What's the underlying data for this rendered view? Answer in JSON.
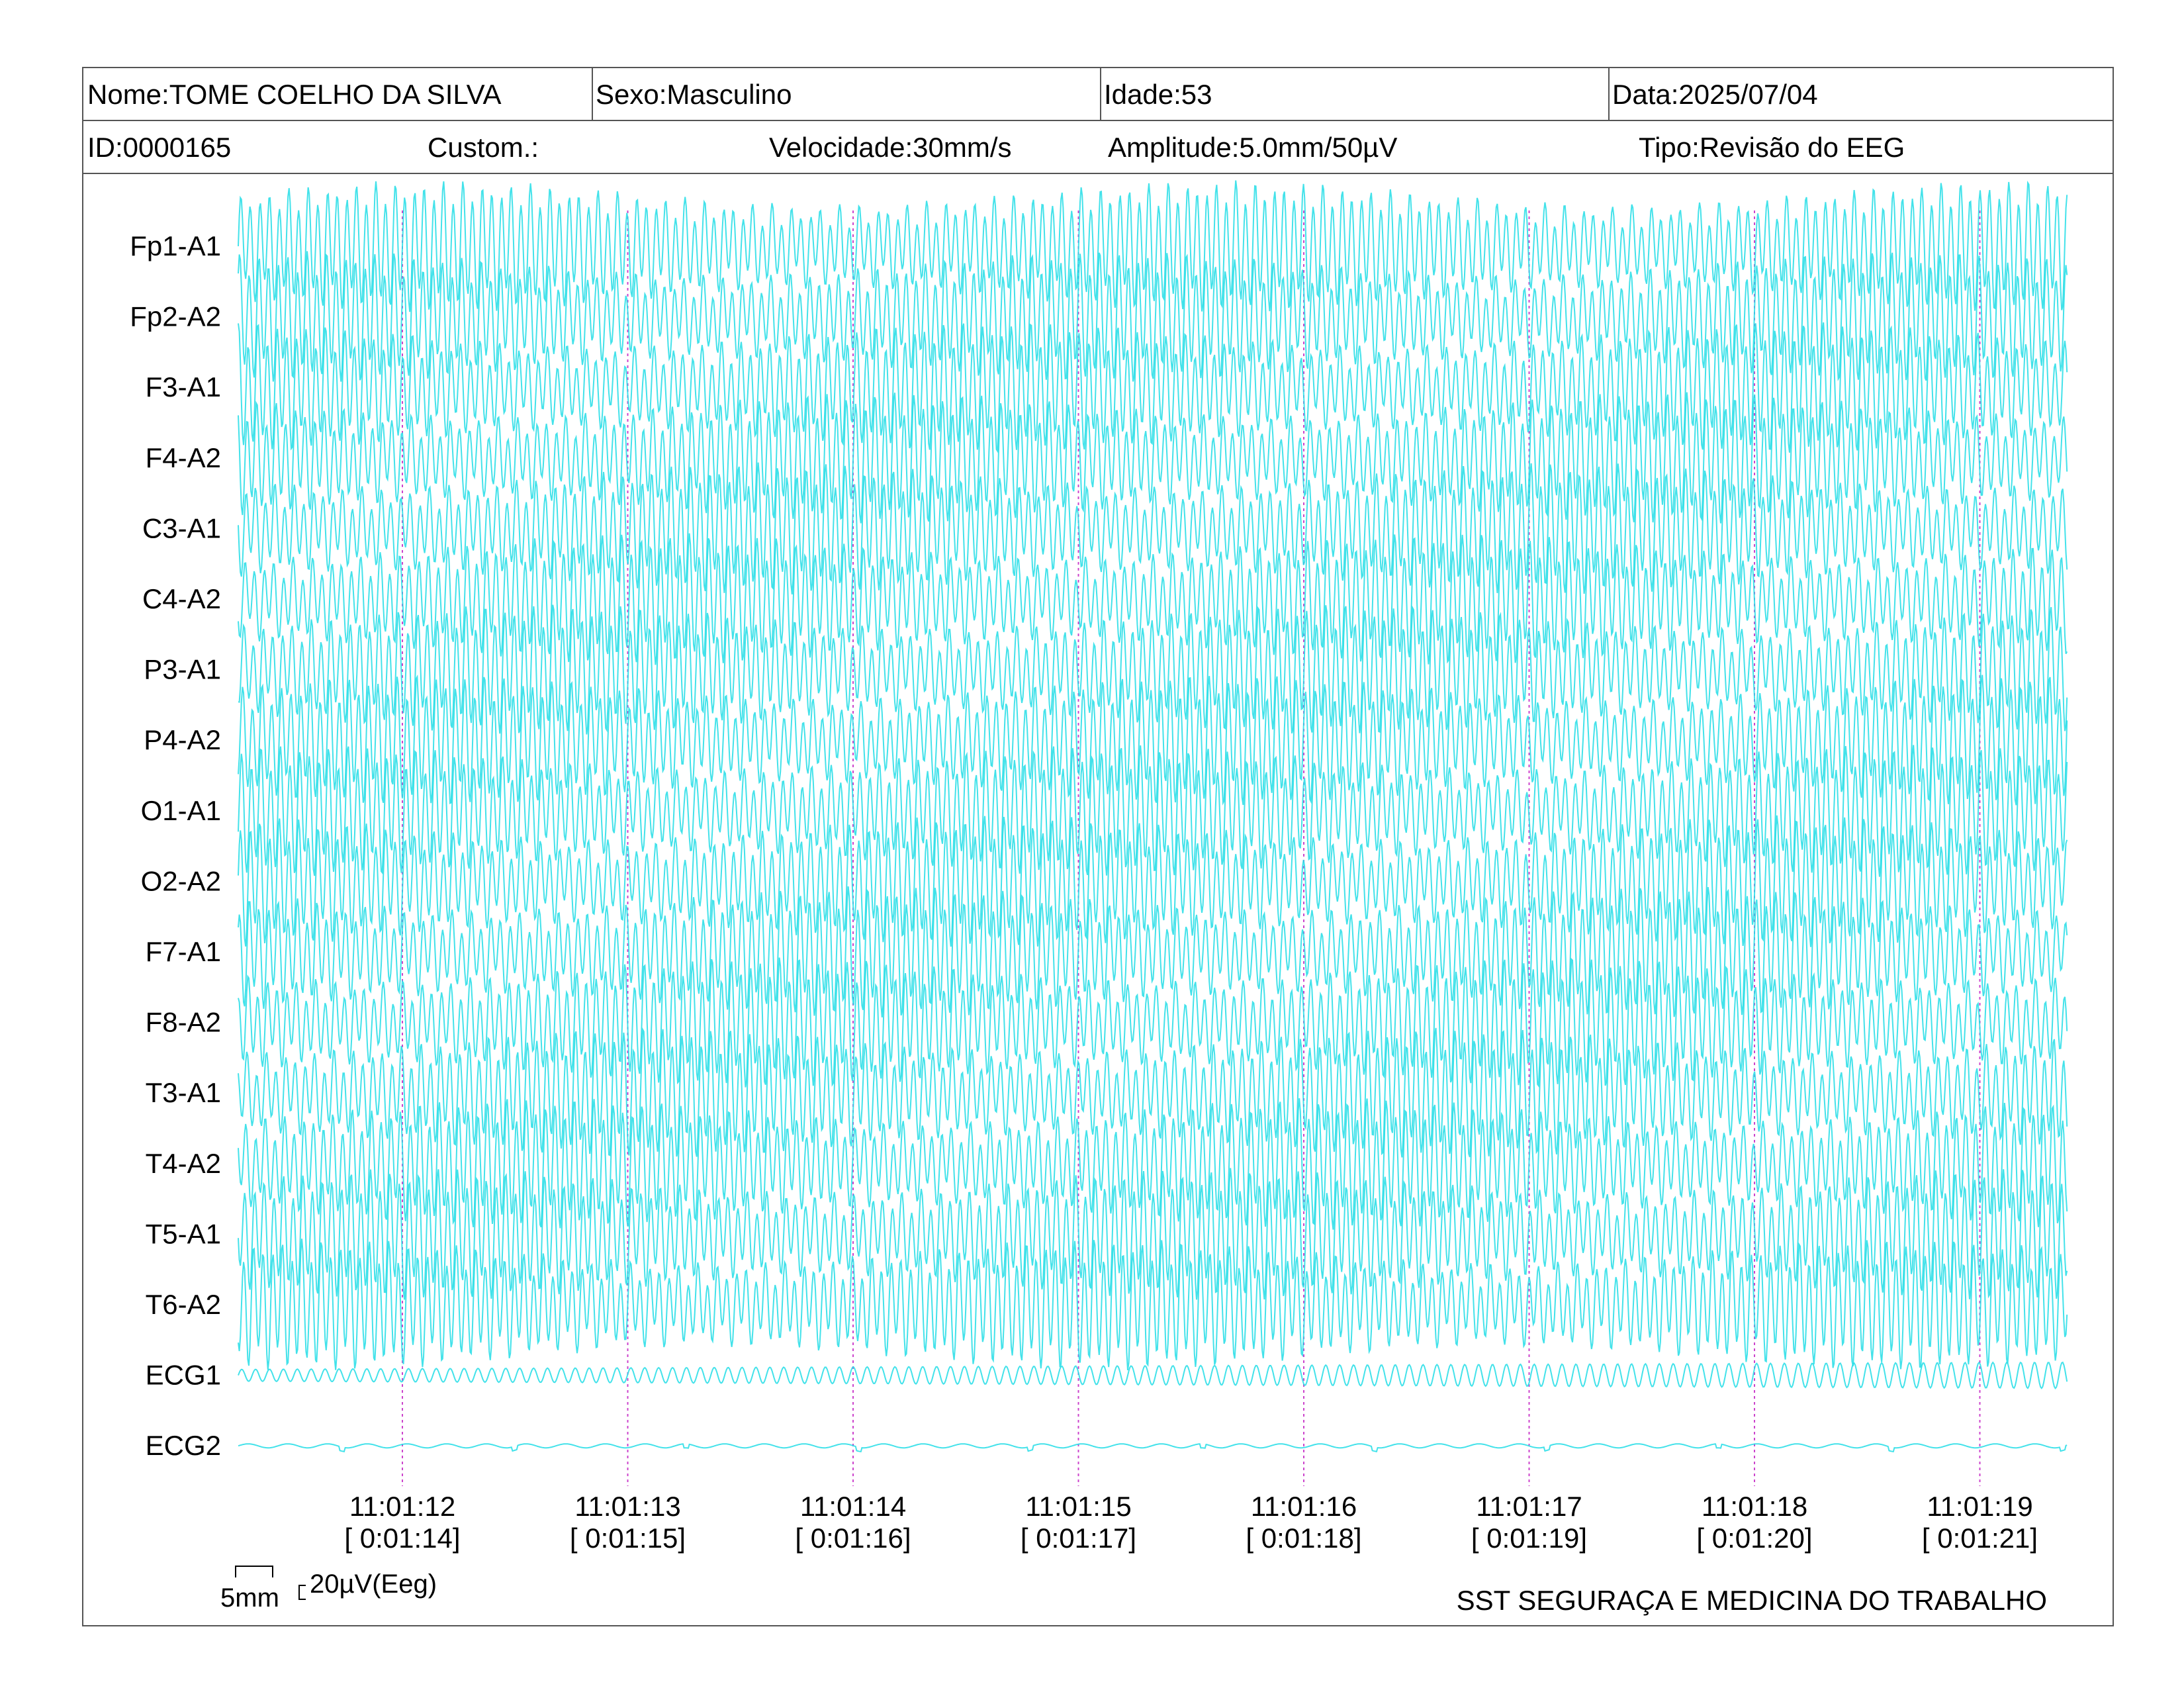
{
  "header": {
    "name": "Nome:TOME COELHO DA SILVA",
    "sex": "Sexo:Masculino",
    "age": "Idade:53",
    "date": "Data:2025/07/04",
    "id": "ID:0000165",
    "custom": "Custom.:",
    "speed": "Velocidade:30mm/s",
    "amplitude": "Amplitude:5.0mm/50µV",
    "type": "Tipo:Revisão do EEG"
  },
  "chart_data": {
    "type": "line",
    "channels": [
      "Fp1-A1",
      "Fp2-A2",
      "F3-A1",
      "F4-A2",
      "C3-A1",
      "C4-A2",
      "P3-A1",
      "P4-A2",
      "O1-A1",
      "O2-A2",
      "F7-A1",
      "F8-A2",
      "T3-A1",
      "T4-A2",
      "T5-A1",
      "T6-A2",
      "ECG1",
      "ECG2"
    ],
    "time_ticks": [
      {
        "clock": "11:01:12",
        "elapsed": "[ 0:01:14]"
      },
      {
        "clock": "11:01:13",
        "elapsed": "[ 0:01:15]"
      },
      {
        "clock": "11:01:14",
        "elapsed": "[ 0:01:16]"
      },
      {
        "clock": "11:01:15",
        "elapsed": "[ 0:01:17]"
      },
      {
        "clock": "11:01:16",
        "elapsed": "[ 0:01:18]"
      },
      {
        "clock": "11:01:17",
        "elapsed": "[ 0:01:19]"
      },
      {
        "clock": "11:01:18",
        "elapsed": "[ 0:01:20]"
      },
      {
        "clock": "11:01:19",
        "elapsed": "[ 0:01:21]"
      }
    ],
    "scale": {
      "time": "5mm",
      "amplitude": "20µV(Eeg)"
    },
    "colors": {
      "trace": "#22dde6",
      "grid": "#cc44cc"
    }
  },
  "footer": {
    "organization": "SST SEGURAÇA E MEDICINA DO TRABALHO"
  }
}
